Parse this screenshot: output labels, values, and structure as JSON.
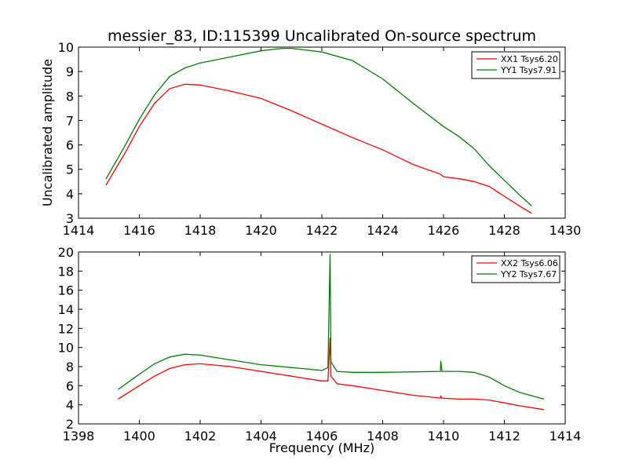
{
  "figure": {
    "title": "messier_83, ID:115399 Uncalibrated On-source spectrum"
  },
  "chart_data": [
    {
      "type": "line",
      "ylabel": "Uncalibrated amplitude",
      "xlabel": "",
      "xlim": [
        1414,
        1430
      ],
      "ylim": [
        3,
        10
      ],
      "x_ticks": [
        "1414",
        "1416",
        "1418",
        "1420",
        "1422",
        "1424",
        "1426",
        "1428",
        "1430"
      ],
      "y_ticks": [
        "3",
        "4",
        "5",
        "6",
        "7",
        "8",
        "9",
        "10"
      ],
      "legend": "top-right",
      "series": [
        {
          "name": "XX1 Tsys6.20",
          "color": "#ff0000",
          "x": [
            1414.9,
            1415.5,
            1416.0,
            1416.5,
            1417.0,
            1417.5,
            1418.0,
            1419.0,
            1420.0,
            1421.0,
            1422.0,
            1423.0,
            1424.0,
            1425.0,
            1425.9,
            1426.0,
            1426.6,
            1427.0,
            1427.5,
            1428.0,
            1428.5,
            1428.9
          ],
          "y": [
            4.35,
            5.6,
            6.75,
            7.7,
            8.3,
            8.48,
            8.45,
            8.2,
            7.9,
            7.4,
            6.85,
            6.3,
            5.8,
            5.2,
            4.8,
            4.7,
            4.6,
            4.5,
            4.3,
            3.9,
            3.5,
            3.2
          ]
        },
        {
          "name": "YY1 Tsys7.91",
          "color": "#008000",
          "x": [
            1414.9,
            1415.5,
            1416.0,
            1416.5,
            1417.0,
            1417.5,
            1418.0,
            1419.0,
            1420.0,
            1420.7,
            1421.0,
            1422.0,
            1423.0,
            1424.0,
            1425.0,
            1426.0,
            1426.5,
            1427.0,
            1427.5,
            1428.0,
            1428.5,
            1428.9
          ],
          "y": [
            4.6,
            5.9,
            7.05,
            8.05,
            8.8,
            9.15,
            9.35,
            9.6,
            9.85,
            9.95,
            9.95,
            9.8,
            9.45,
            8.7,
            7.7,
            6.75,
            6.35,
            5.85,
            5.15,
            4.55,
            3.95,
            3.5
          ]
        }
      ]
    },
    {
      "type": "line",
      "ylabel": "",
      "xlabel": "Frequency (MHz)",
      "xlim": [
        1398,
        1414
      ],
      "ylim": [
        2,
        20
      ],
      "x_ticks": [
        "1398",
        "1400",
        "1402",
        "1404",
        "1406",
        "1408",
        "1410",
        "1412",
        "1414"
      ],
      "y_ticks": [
        "2",
        "4",
        "6",
        "8",
        "10",
        "12",
        "14",
        "16",
        "18",
        "20"
      ],
      "legend": "top-right",
      "series": [
        {
          "name": "XX2 Tsys6.06",
          "color": "#ff0000",
          "x": [
            1399.3,
            1400.0,
            1400.5,
            1401.0,
            1401.5,
            1402.0,
            1403.0,
            1404.0,
            1405.0,
            1406.0,
            1406.2,
            1406.27,
            1406.3,
            1406.5,
            1407.0,
            1408.0,
            1409.0,
            1409.9,
            1409.91,
            1409.95,
            1410.5,
            1411.0,
            1411.5,
            1412.0,
            1412.5,
            1413.3
          ],
          "y": [
            4.6,
            6.0,
            7.0,
            7.8,
            8.2,
            8.3,
            8.0,
            7.5,
            7.0,
            6.5,
            6.5,
            11.0,
            7.0,
            6.2,
            6.0,
            5.5,
            5.0,
            4.7,
            4.9,
            4.7,
            4.6,
            4.6,
            4.5,
            4.2,
            3.9,
            3.5
          ]
        },
        {
          "name": "YY2 Tsys7.67",
          "color": "#008000",
          "x": [
            1399.3,
            1400.0,
            1400.5,
            1401.0,
            1401.5,
            1402.0,
            1403.0,
            1404.0,
            1405.0,
            1406.0,
            1406.2,
            1406.27,
            1406.3,
            1406.5,
            1407.0,
            1408.0,
            1409.0,
            1409.9,
            1409.91,
            1409.95,
            1410.5,
            1411.0,
            1411.5,
            1412.0,
            1412.5,
            1413.3
          ],
          "y": [
            5.6,
            7.2,
            8.3,
            9.0,
            9.3,
            9.2,
            8.7,
            8.2,
            7.9,
            7.6,
            7.9,
            19.8,
            8.5,
            7.5,
            7.4,
            7.4,
            7.45,
            7.5,
            8.6,
            7.5,
            7.5,
            7.4,
            6.9,
            6.0,
            5.3,
            4.6
          ]
        }
      ]
    }
  ]
}
